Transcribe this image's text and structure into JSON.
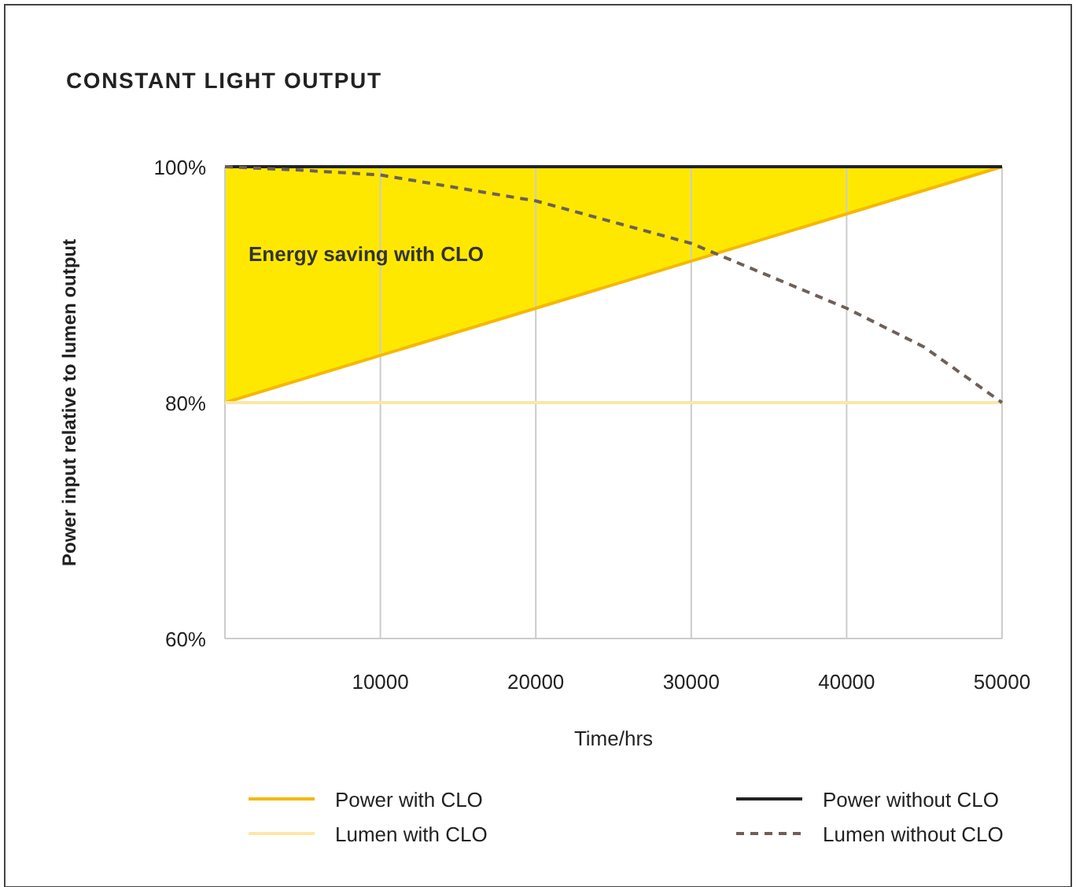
{
  "chart_data": {
    "type": "line",
    "title": "CONSTANT LIGHT OUTPUT",
    "xlabel": "Time/hrs",
    "ylabel": "Power input relative to lumen output",
    "xlim": [
      0,
      50000
    ],
    "xticks": [
      10000,
      20000,
      30000,
      40000,
      50000
    ],
    "ylim": [
      60,
      100
    ],
    "yticks": [
      {
        "value": 60,
        "label": "60%"
      },
      {
        "value": 80,
        "label": "80%"
      },
      {
        "value": 100,
        "label": "100%"
      }
    ],
    "grid": "x",
    "legend": "bottom",
    "annotations": [
      "Energy saving with CLO"
    ],
    "series": [
      {
        "name": "Power with CLO",
        "color": "#f5b800",
        "x": [
          0,
          50000
        ],
        "values": [
          80,
          100
        ],
        "lower": [
          80,
          100
        ],
        "upper": [
          100,
          100
        ]
      },
      {
        "name": "Power without CLO",
        "color": "#222222",
        "x": [
          0,
          50000
        ],
        "values": [
          100,
          100
        ]
      },
      {
        "name": "Lumen with CLO",
        "color": "#fde7a6",
        "x": [
          0,
          50000
        ],
        "values": [
          80,
          80
        ]
      },
      {
        "name": "Lumen without CLO",
        "color": "#6e6058",
        "line_style": "dashed",
        "x": [
          0,
          5000,
          10000,
          20000,
          30000,
          40000,
          45000,
          50000
        ],
        "values": [
          100,
          99.7,
          99.3,
          97.1,
          93.5,
          88,
          84.7,
          80
        ]
      }
    ]
  }
}
